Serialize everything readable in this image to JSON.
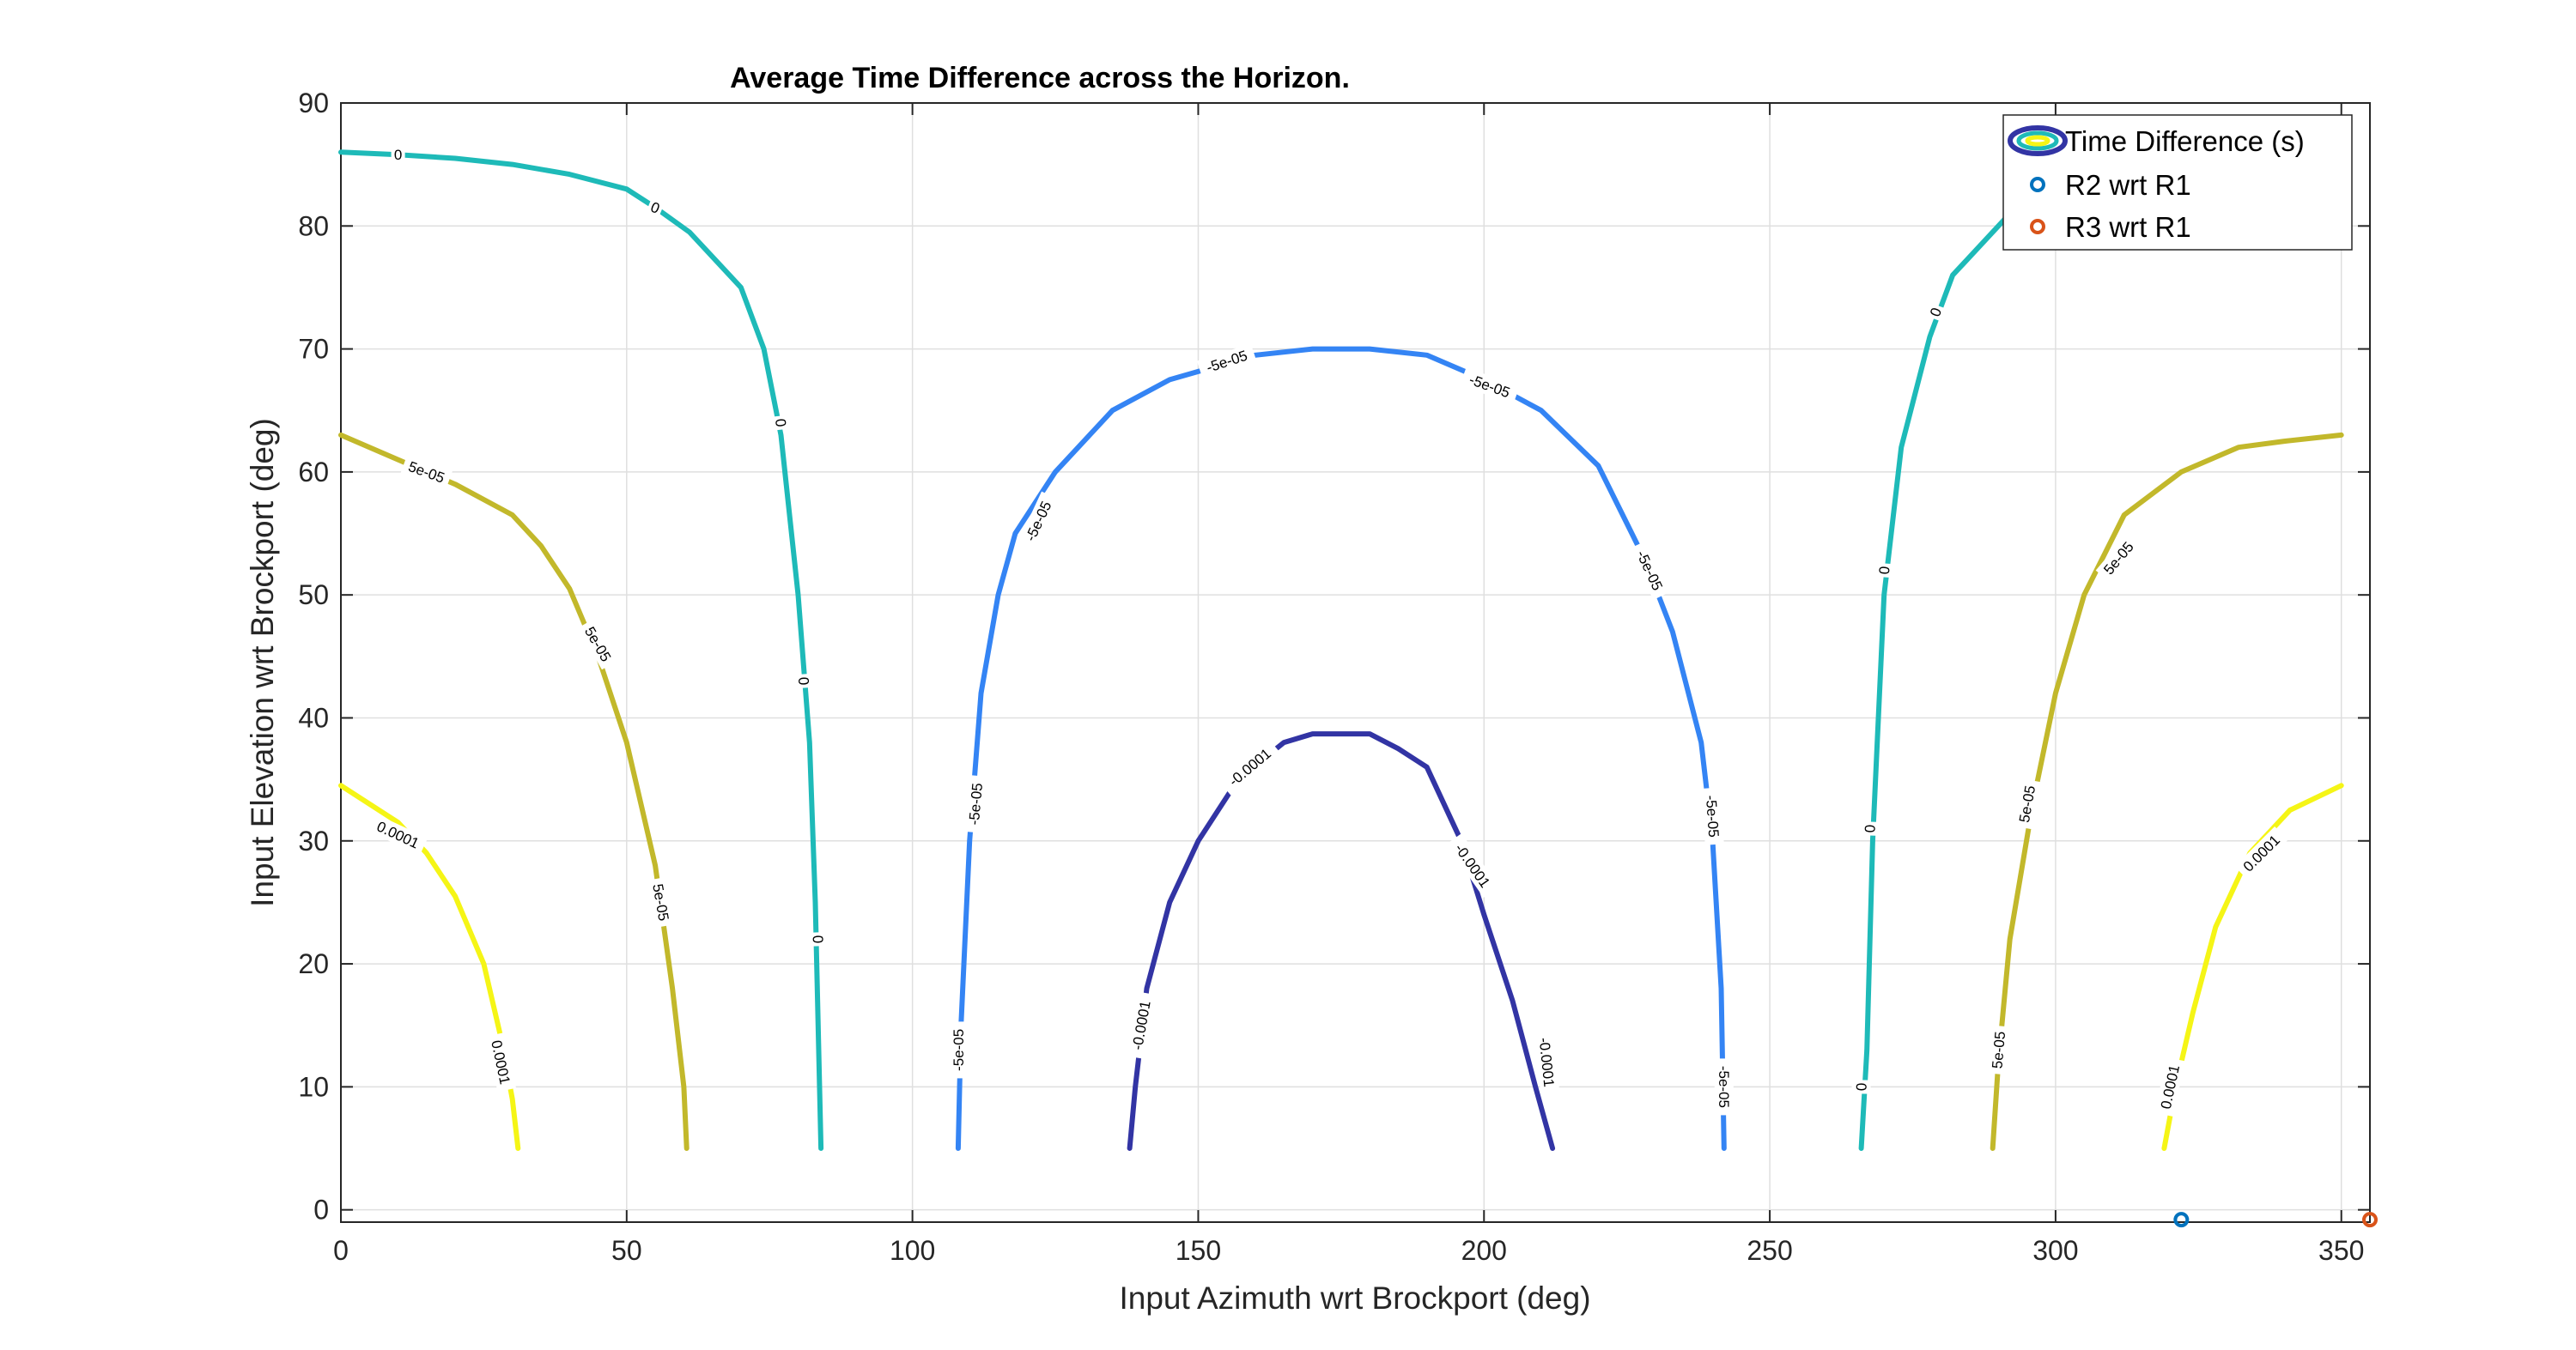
{
  "chart_data": {
    "type": "contour",
    "title": "Average Time Difference across the Horizon.",
    "xlabel": "Input Azimuth wrt Brockport (deg)",
    "ylabel": "Input Elevation wrt Brockport (deg)",
    "xlim": [
      0,
      355
    ],
    "ylim": [
      -1,
      90
    ],
    "xticks": [
      0,
      50,
      100,
      150,
      200,
      250,
      300,
      350
    ],
    "yticks": [
      0,
      10,
      20,
      30,
      40,
      50,
      60,
      70,
      80,
      90
    ],
    "grid": true,
    "legend_position": "top-right",
    "legend": [
      {
        "label": "Time Difference (s)",
        "marker": "contour"
      },
      {
        "label": "R2 wrt R1",
        "marker": "circle",
        "color": "#0072BD"
      },
      {
        "label": "R3 wrt R1",
        "marker": "circle",
        "color": "#D95319"
      }
    ],
    "contours": [
      {
        "level": "0.0001",
        "color": "#F5F516",
        "lines": [
          {
            "points": [
              [
                0,
                34.5
              ],
              [
                10,
                31.5
              ],
              [
                15,
                29
              ],
              [
                20,
                25.5
              ],
              [
                25,
                20
              ],
              [
                28,
                14
              ],
              [
                30,
                9
              ],
              [
                31,
                5
              ]
            ],
            "labels": [
              {
                "x": 10,
                "y": 30.5,
                "angle": 25
              },
              {
                "x": 28,
                "y": 12,
                "angle": 78
              }
            ]
          },
          {
            "points": [
              [
                319,
                5
              ],
              [
                321,
                10
              ],
              [
                324,
                16
              ],
              [
                328,
                23
              ],
              [
                334,
                29
              ],
              [
                341,
                32.5
              ],
              [
                350,
                34.5
              ]
            ],
            "labels": [
              {
                "x": 320,
                "y": 10,
                "angle": -78
              },
              {
                "x": 336,
                "y": 29,
                "angle": -45
              }
            ]
          }
        ]
      },
      {
        "level": "5e-05",
        "color": "#C2B82B",
        "lines": [
          {
            "points": [
              [
                0,
                63
              ],
              [
                10,
                61
              ],
              [
                20,
                59
              ],
              [
                30,
                56.5
              ],
              [
                35,
                54
              ],
              [
                40,
                50.5
              ],
              [
                45,
                45
              ],
              [
                50,
                38
              ],
              [
                55,
                28
              ],
              [
                58,
                18
              ],
              [
                60,
                10
              ],
              [
                60.5,
                5
              ]
            ],
            "labels": [
              {
                "x": 15,
                "y": 60,
                "angle": 20
              },
              {
                "x": 45,
                "y": 46,
                "angle": 60
              },
              {
                "x": 56,
                "y": 25,
                "angle": 80
              }
            ]
          },
          {
            "points": [
              [
                289,
                5
              ],
              [
                290,
                12
              ],
              [
                292,
                22
              ],
              [
                296,
                33
              ],
              [
                300,
                42
              ],
              [
                305,
                50
              ],
              [
                312,
                56.5
              ],
              [
                322,
                60
              ],
              [
                332,
                62
              ],
              [
                340,
                62.5
              ],
              [
                350,
                63
              ]
            ],
            "labels": [
              {
                "x": 290,
                "y": 13,
                "angle": -85
              },
              {
                "x": 295,
                "y": 33,
                "angle": -80
              },
              {
                "x": 311,
                "y": 53,
                "angle": -50
              }
            ]
          }
        ]
      },
      {
        "level": "0",
        "color": "#1EBAB8",
        "lines": [
          {
            "points": [
              [
                0,
                86
              ],
              [
                10,
                85.8
              ],
              [
                20,
                85.5
              ],
              [
                30,
                85
              ],
              [
                40,
                84.2
              ],
              [
                50,
                83
              ],
              [
                55,
                81.5
              ],
              [
                61,
                79.5
              ],
              [
                66,
                77
              ],
              [
                70,
                75
              ],
              [
                74,
                70
              ],
              [
                77,
                63
              ],
              [
                80,
                50
              ],
              [
                82,
                38
              ],
              [
                83,
                25
              ],
              [
                84,
                5
              ]
            ],
            "labels": [
              {
                "x": 10,
                "y": 85.8,
                "angle": 0
              },
              {
                "x": 55,
                "y": 81.5,
                "angle": 22
              },
              {
                "x": 77,
                "y": 64,
                "angle": 84
              },
              {
                "x": 81,
                "y": 43,
                "angle": 86
              },
              {
                "x": 83.5,
                "y": 22,
                "angle": 88
              }
            ]
          },
          {
            "points": [
              [
                266,
                5
              ],
              [
                267,
                13
              ],
              [
                268,
                30
              ],
              [
                270,
                50
              ],
              [
                273,
                62
              ],
              [
                278,
                71
              ],
              [
                282,
                76
              ],
              [
                290,
                80
              ],
              [
                300,
                85
              ]
            ],
            "labels": [
              {
                "x": 266,
                "y": 10,
                "angle": -89
              },
              {
                "x": 267.5,
                "y": 31,
                "angle": -88
              },
              {
                "x": 270,
                "y": 52,
                "angle": -86
              },
              {
                "x": 279,
                "y": 73,
                "angle": -70
              }
            ]
          }
        ]
      },
      {
        "level": "-5e-05",
        "color": "#3484F4",
        "lines": [
          {
            "points": [
              [
                108,
                5
              ],
              [
                108.5,
                15
              ],
              [
                110,
                30
              ],
              [
                112,
                42
              ],
              [
                115,
                50
              ],
              [
                118,
                55
              ],
              [
                125,
                60
              ],
              [
                135,
                65
              ],
              [
                145,
                67.5
              ],
              [
                160,
                69.5
              ],
              [
                170,
                70
              ],
              [
                180,
                70
              ],
              [
                190,
                69.5
              ],
              [
                200,
                67.5
              ],
              [
                210,
                65
              ],
              [
                220,
                60.5
              ],
              [
                228,
                53
              ],
              [
                233,
                47
              ],
              [
                238,
                38
              ],
              [
                240,
                30
              ],
              [
                241.5,
                18
              ],
              [
                242,
                5
              ]
            ],
            "labels": [
              {
                "x": 108,
                "y": 13,
                "angle": -90
              },
              {
                "x": 111,
                "y": 33,
                "angle": -85
              },
              {
                "x": 122,
                "y": 56,
                "angle": -65
              },
              {
                "x": 155,
                "y": 69,
                "angle": -18
              },
              {
                "x": 201,
                "y": 67,
                "angle": 20
              },
              {
                "x": 229,
                "y": 52,
                "angle": 65
              },
              {
                "x": 240,
                "y": 32,
                "angle": 86
              },
              {
                "x": 242,
                "y": 10,
                "angle": 90
              }
            ]
          }
        ]
      },
      {
        "level": "-0.0001",
        "color": "#3234A4",
        "lines": [
          {
            "points": [
              [
                138,
                5
              ],
              [
                139,
                10
              ],
              [
                141,
                18
              ],
              [
                145,
                25
              ],
              [
                150,
                30
              ],
              [
                157,
                35
              ],
              [
                165,
                38
              ],
              [
                170,
                38.7
              ],
              [
                180,
                38.7
              ],
              [
                185,
                37.5
              ],
              [
                190,
                36
              ],
              [
                196,
                30
              ],
              [
                200,
                24
              ],
              [
                205,
                17
              ],
              [
                209,
                10
              ],
              [
                212,
                5
              ]
            ],
            "labels": [
              {
                "x": 140,
                "y": 15,
                "angle": -80
              },
              {
                "x": 159,
                "y": 36,
                "angle": -40
              },
              {
                "x": 198,
                "y": 28,
                "angle": 55
              },
              {
                "x": 211,
                "y": 12,
                "angle": 84
              }
            ]
          }
        ]
      }
    ],
    "markers": [
      {
        "series": "R2 wrt R1",
        "x": 322,
        "y": -0.8,
        "color": "#0072BD"
      },
      {
        "series": "R3 wrt R1",
        "x": 355,
        "y": -0.8,
        "color": "#D95319"
      }
    ]
  }
}
